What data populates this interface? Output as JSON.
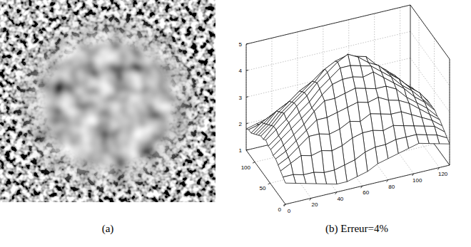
{
  "image": {
    "caption": "(a)"
  },
  "chart_data": {
    "type": "surface",
    "caption": "(b) Erreur=4%",
    "x": [
      0,
      8,
      16,
      24,
      32,
      40,
      48,
      56,
      64,
      72,
      80,
      88,
      96,
      104,
      112,
      120,
      128
    ],
    "y": [
      0,
      8,
      16,
      24,
      32,
      40,
      48,
      56,
      64,
      72,
      80,
      88,
      96,
      104,
      112,
      120,
      128
    ],
    "z": [
      [
        1.8,
        1.7,
        1.6,
        1.5,
        1.4,
        1.3,
        1.3,
        1.4,
        1.5,
        1.7,
        1.8,
        1.9,
        2.0,
        2.1,
        2.0,
        1.9,
        1.8
      ],
      [
        1.9,
        1.9,
        1.8,
        1.8,
        1.7,
        1.7,
        1.8,
        1.9,
        2.1,
        2.2,
        2.2,
        2.3,
        2.3,
        2.3,
        2.2,
        2.1,
        1.9
      ],
      [
        2.0,
        2.2,
        2.4,
        2.3,
        2.4,
        2.3,
        2.4,
        2.6,
        2.7,
        2.7,
        2.6,
        2.7,
        2.6,
        2.5,
        2.4,
        2.3,
        2.0
      ],
      [
        2.1,
        2.3,
        2.6,
        2.9,
        2.9,
        2.8,
        2.9,
        3.1,
        3.0,
        3.2,
        3.1,
        3.0,
        3.0,
        2.8,
        2.6,
        2.4,
        2.1
      ],
      [
        2.2,
        2.4,
        2.7,
        3.0,
        3.3,
        3.3,
        3.4,
        3.5,
        3.6,
        3.5,
        3.6,
        3.4,
        3.3,
        3.1,
        2.8,
        2.5,
        2.2
      ],
      [
        2.2,
        2.5,
        2.8,
        3.1,
        3.5,
        3.8,
        3.8,
        3.9,
        4.0,
        3.9,
        3.8,
        3.8,
        3.6,
        3.2,
        2.9,
        2.6,
        2.2
      ],
      [
        2.3,
        2.6,
        2.9,
        3.2,
        3.5,
        3.9,
        4.2,
        4.3,
        4.3,
        4.2,
        4.3,
        4.0,
        3.7,
        3.4,
        3.0,
        2.7,
        2.3
      ],
      [
        2.3,
        2.6,
        3.0,
        3.3,
        3.6,
        4.0,
        4.3,
        4.6,
        4.6,
        4.5,
        4.4,
        4.1,
        3.8,
        3.4,
        3.1,
        2.7,
        2.3
      ],
      [
        2.4,
        2.7,
        3.0,
        3.4,
        3.7,
        4.1,
        4.4,
        4.7,
        4.9,
        4.7,
        4.4,
        4.2,
        3.8,
        3.5,
        3.1,
        2.8,
        2.3
      ],
      [
        2.3,
        2.7,
        3.1,
        3.4,
        3.7,
        4.0,
        4.4,
        4.6,
        4.7,
        4.6,
        4.5,
        4.1,
        3.8,
        3.4,
        3.0,
        2.7,
        2.3
      ],
      [
        2.3,
        2.6,
        3.0,
        3.3,
        3.6,
        3.9,
        4.2,
        4.3,
        4.4,
        4.3,
        4.2,
        4.0,
        3.7,
        3.4,
        3.0,
        2.6,
        2.2
      ],
      [
        2.2,
        2.5,
        2.9,
        3.2,
        3.5,
        3.7,
        3.8,
        3.9,
        4.0,
        4.0,
        3.9,
        3.7,
        3.5,
        3.2,
        2.9,
        2.6,
        2.2
      ],
      [
        2.1,
        2.4,
        2.8,
        3.0,
        3.2,
        3.4,
        3.5,
        3.6,
        3.6,
        3.5,
        3.5,
        3.4,
        3.2,
        3.0,
        2.8,
        2.5,
        2.1
      ],
      [
        2.0,
        2.3,
        2.6,
        2.8,
        2.9,
        3.0,
        3.1,
        3.2,
        3.2,
        3.1,
        3.1,
        3.0,
        2.9,
        2.8,
        2.6,
        2.4,
        2.1
      ],
      [
        1.9,
        2.2,
        2.4,
        2.5,
        2.6,
        2.7,
        2.7,
        2.8,
        2.8,
        2.8,
        2.7,
        2.7,
        2.6,
        2.5,
        2.4,
        2.3,
        2.0
      ],
      [
        1.9,
        2.0,
        2.2,
        2.3,
        2.3,
        2.4,
        2.4,
        2.5,
        2.5,
        2.4,
        2.4,
        2.4,
        2.3,
        2.3,
        2.2,
        2.1,
        1.9
      ],
      [
        1.8,
        1.9,
        2.0,
        2.0,
        2.1,
        2.1,
        2.1,
        2.2,
        2.2,
        2.1,
        2.1,
        2.1,
        2.0,
        2.0,
        2.0,
        1.9,
        1.8
      ]
    ],
    "xlim": [
      0,
      128
    ],
    "ylim": [
      0,
      128
    ],
    "zlim": [
      1,
      5
    ],
    "xticks": [
      0,
      20,
      40,
      60,
      80,
      100,
      120
    ],
    "yticks": [
      0,
      50,
      100
    ],
    "zticks": [
      1,
      2,
      3,
      4,
      5
    ],
    "grid": true
  }
}
